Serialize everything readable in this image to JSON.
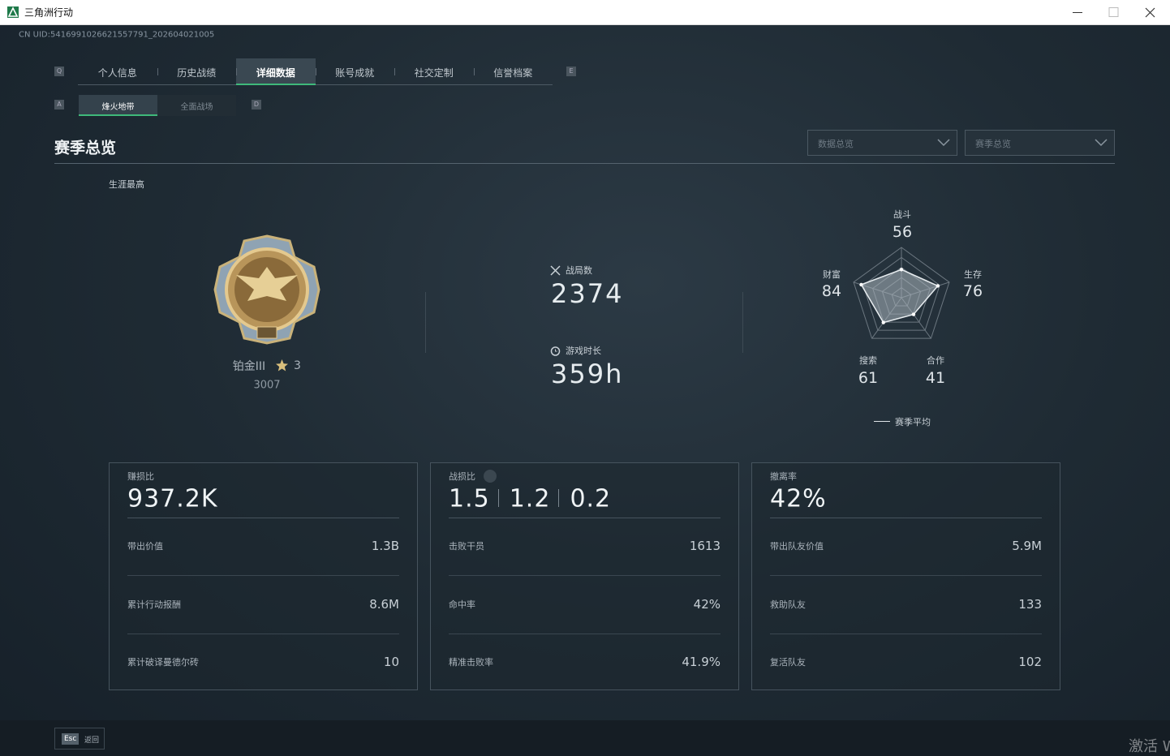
{
  "window": {
    "title": "三角洲行动"
  },
  "uid": "CN UID:5416991026621557791_202604021005",
  "tabs": {
    "left_key": "Q",
    "right_key": "E",
    "active": 2,
    "items": [
      "个人信息",
      "历史战绩",
      "详细数据",
      "账号成就",
      "社交定制",
      "信誉档案"
    ]
  },
  "subtabs": {
    "left_key": "A",
    "right_key": "D",
    "active": 0,
    "items": [
      "烽火地带",
      "全面战场"
    ]
  },
  "section": {
    "title": "赛季总览",
    "dropdowns": [
      "数据总览",
      "赛季总览"
    ]
  },
  "career": {
    "label": "生涯最高",
    "rank": "铂金III",
    "stars": 3,
    "score": 3007
  },
  "stats": {
    "matches_label": "战局数",
    "matches": 2374,
    "time_label": "游戏时长",
    "time": "359h"
  },
  "radar": {
    "rlim": [
      0,
      100
    ],
    "legend": "赛季平均",
    "items": [
      {
        "label": "战斗",
        "value": 56
      },
      {
        "label": "生存",
        "value": 76
      },
      {
        "label": "合作",
        "value": 41
      },
      {
        "label": "搜索",
        "value": 61
      },
      {
        "label": "财富",
        "value": 84
      }
    ]
  },
  "cards": [
    {
      "title": "赚损比",
      "headline": [
        "937.2K"
      ],
      "rows": [
        {
          "label": "带出价值",
          "value": "1.3B"
        },
        {
          "label": "累计行动报酬",
          "value": "8.6M"
        },
        {
          "label": "累计破译曼德尔砖",
          "value": 10
        }
      ]
    },
    {
      "title": "战损比",
      "headline": [
        "1.5",
        "1.2",
        "0.2"
      ],
      "rows": [
        {
          "label": "击败干员",
          "value": 1613
        },
        {
          "label": "命中率",
          "value": "42%"
        },
        {
          "label": "精准击败率",
          "value": "41.9%"
        }
      ]
    },
    {
      "title": "撤离率",
      "headline": [
        "42%"
      ],
      "rows": [
        {
          "label": "带出队友价值",
          "value": "5.9M"
        },
        {
          "label": "救助队友",
          "value": 133
        },
        {
          "label": "复活队友",
          "value": 102
        }
      ]
    }
  ],
  "footer": {
    "key": "Esc",
    "label": "返回"
  },
  "watermark": "激活 Windows"
}
